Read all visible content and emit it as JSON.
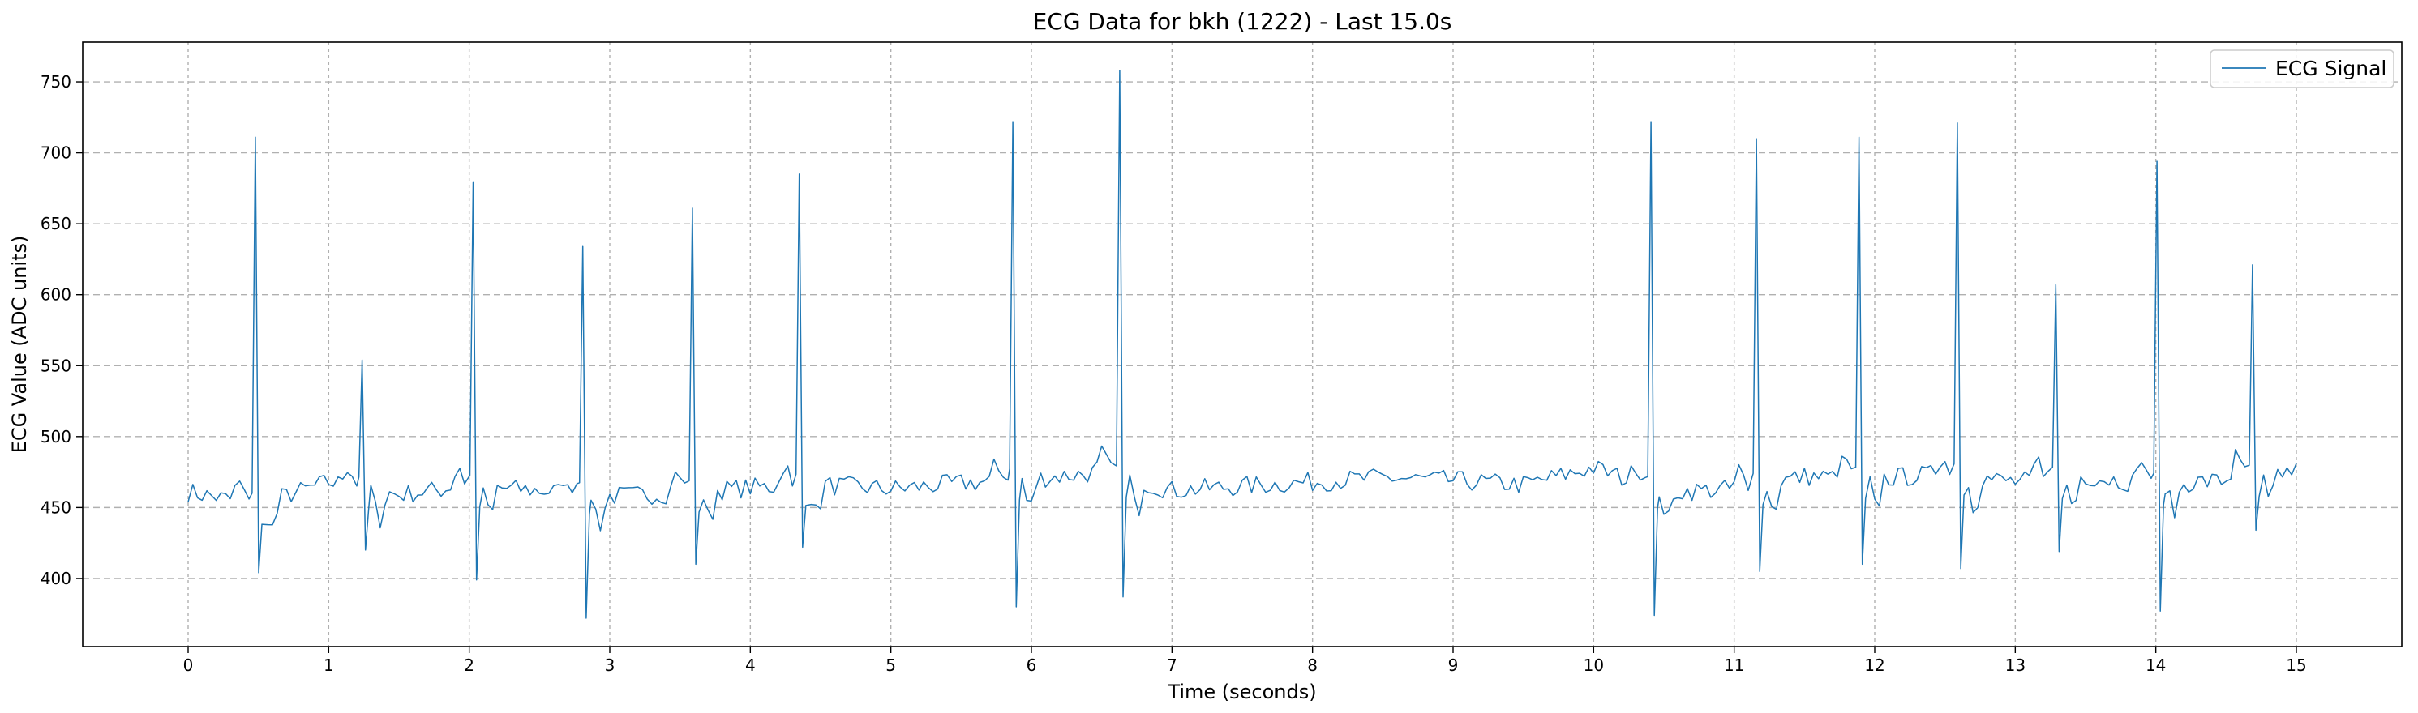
{
  "chart_data": {
    "type": "line",
    "title": "ECG Data for bkh (1222) - Last 15.0s",
    "xlabel": "Time (seconds)",
    "ylabel": "ECG Value (ADC units)",
    "xlim": [
      -0.75,
      15.75
    ],
    "ylim": [
      352,
      778
    ],
    "xticks": [
      0,
      1,
      2,
      3,
      4,
      5,
      6,
      7,
      8,
      9,
      10,
      11,
      12,
      13,
      14,
      15
    ],
    "yticks": [
      400,
      450,
      500,
      550,
      600,
      650,
      700,
      750
    ],
    "grid": true,
    "grid_style": "dashed",
    "legend_position": "top-right",
    "line_color": "#1f77b4",
    "baseline": [
      [
        0.0,
        461
      ],
      [
        0.5,
        452
      ],
      [
        1.0,
        468
      ],
      [
        1.5,
        459
      ],
      [
        2.0,
        465
      ],
      [
        2.5,
        462
      ],
      [
        3.0,
        458
      ],
      [
        3.5,
        460
      ],
      [
        4.0,
        464
      ],
      [
        4.5,
        466
      ],
      [
        5.0,
        463
      ],
      [
        5.5,
        467
      ],
      [
        6.0,
        470
      ],
      [
        6.5,
        475
      ],
      [
        7.0,
        462
      ],
      [
        7.5,
        465
      ],
      [
        8.0,
        468
      ],
      [
        8.5,
        471
      ],
      [
        9.0,
        469
      ],
      [
        9.5,
        466
      ],
      [
        10.0,
        478
      ],
      [
        10.5,
        461
      ],
      [
        11.0,
        463
      ],
      [
        11.5,
        472
      ],
      [
        12.0,
        470
      ],
      [
        12.5,
        474
      ],
      [
        13.0,
        468
      ],
      [
        13.5,
        472
      ],
      [
        14.0,
        466
      ],
      [
        14.5,
        469
      ],
      [
        15.0,
        476
      ]
    ],
    "beats": [
      {
        "t": 0.49,
        "peak": 711,
        "trough": 404
      },
      {
        "t": 1.25,
        "peak": 554,
        "trough": 420
      },
      {
        "t": 2.04,
        "peak": 679,
        "trough": 399
      },
      {
        "t": 2.82,
        "peak": 634,
        "trough": 372
      },
      {
        "t": 3.6,
        "peak": 661,
        "trough": 410
      },
      {
        "t": 4.36,
        "peak": 685,
        "trough": 422
      },
      {
        "t": 5.88,
        "peak": 722,
        "trough": 380
      },
      {
        "t": 6.64,
        "peak": 758,
        "trough": 387
      },
      {
        "t": 10.42,
        "peak": 722,
        "trough": 374
      },
      {
        "t": 11.17,
        "peak": 710,
        "trough": 405
      },
      {
        "t": 11.9,
        "peak": 711,
        "trough": 410
      },
      {
        "t": 12.6,
        "peak": 721,
        "trough": 407
      },
      {
        "t": 13.3,
        "peak": 607,
        "trough": 419
      },
      {
        "t": 14.02,
        "peak": 694,
        "trough": 377
      },
      {
        "t": 14.7,
        "peak": 621,
        "trough": 434
      }
    ],
    "series": [
      {
        "name": "ECG Signal",
        "color": "#1f77b4"
      }
    ]
  }
}
